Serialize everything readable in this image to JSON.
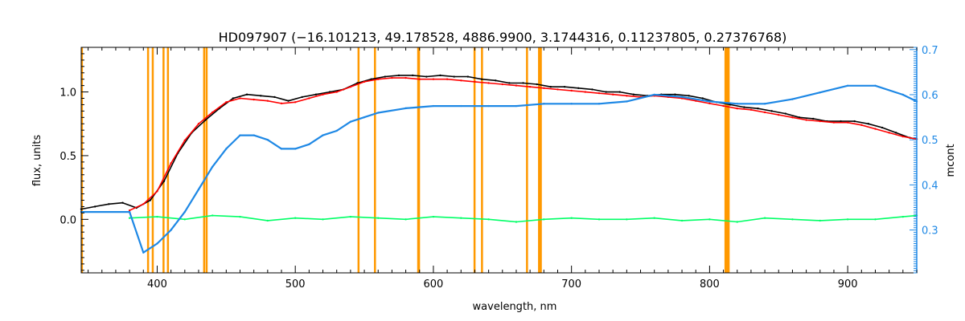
{
  "chart_data": {
    "type": "line",
    "title": "HD097907    (−16.101213, 49.178528, 4886.9900, 3.1744316, 0.11237805, 0.27376768)",
    "xlabel": "wavelength, nm",
    "ylabel": "flux, units",
    "y2label": "mcont",
    "xlim": [
      345,
      950
    ],
    "ylim": [
      -0.42,
      1.35
    ],
    "y2lim": [
      0.205,
      0.705
    ],
    "xticks": [
      400,
      500,
      600,
      700,
      800,
      900
    ],
    "yticks": [
      0.0,
      0.5,
      1.0
    ],
    "y2ticks": [
      0.3,
      0.4,
      0.5,
      0.6,
      0.7
    ],
    "xtick_labels": [
      "400",
      "500",
      "600",
      "700",
      "800",
      "900"
    ],
    "ytick_labels": [
      "0.0",
      "0.5",
      "1.0"
    ],
    "y2tick_labels": [
      "0.3",
      "0.4",
      "0.5",
      "0.6",
      "0.7"
    ],
    "grid": false,
    "colors": {
      "observed": "#000000",
      "model": "#ff0000",
      "residual": "#00ff66",
      "continuum": "#1e88e5",
      "lines": "#ff9900",
      "right_axis": "#1e88e5"
    },
    "series": [
      {
        "axis": "left",
        "color": "#000000",
        "x": [
          345,
          355,
          365,
          375,
          385,
          395,
          405,
          415,
          425,
          435,
          445,
          455,
          465,
          475,
          485,
          495,
          505,
          515,
          525,
          535,
          545,
          555,
          565,
          575,
          585,
          595,
          605,
          615,
          625,
          635,
          645,
          655,
          665,
          675,
          685,
          695,
          705,
          715,
          725,
          735,
          745,
          755,
          765,
          775,
          785,
          795,
          805,
          815,
          825,
          835,
          845,
          855,
          865,
          875,
          885,
          895,
          905,
          915,
          925,
          935,
          945,
          950
        ],
        "values": [
          0.08,
          0.1,
          0.12,
          0.13,
          0.09,
          0.15,
          0.3,
          0.52,
          0.68,
          0.78,
          0.87,
          0.95,
          0.98,
          0.97,
          0.96,
          0.93,
          0.96,
          0.98,
          1.0,
          1.02,
          1.07,
          1.1,
          1.12,
          1.13,
          1.13,
          1.12,
          1.13,
          1.12,
          1.12,
          1.1,
          1.09,
          1.07,
          1.07,
          1.06,
          1.04,
          1.04,
          1.03,
          1.02,
          1.0,
          1.0,
          0.98,
          0.97,
          0.98,
          0.98,
          0.97,
          0.95,
          0.92,
          0.9,
          0.88,
          0.87,
          0.85,
          0.83,
          0.8,
          0.79,
          0.77,
          0.77,
          0.77,
          0.75,
          0.72,
          0.68,
          0.64,
          0.63
        ]
      },
      {
        "axis": "left",
        "color": "#ff0000",
        "x": [
          380,
          390,
          400,
          410,
          420,
          430,
          440,
          450,
          460,
          470,
          480,
          490,
          500,
          510,
          520,
          530,
          540,
          550,
          560,
          570,
          580,
          590,
          600,
          610,
          620,
          630,
          640,
          650,
          660,
          670,
          680,
          690,
          700,
          710,
          720,
          730,
          740,
          750,
          760,
          770,
          780,
          790,
          800,
          810,
          820,
          830,
          840,
          850,
          860,
          870,
          880,
          890,
          900,
          910,
          920,
          930,
          940,
          950
        ],
        "values": [
          0.07,
          0.12,
          0.22,
          0.44,
          0.62,
          0.75,
          0.84,
          0.92,
          0.95,
          0.94,
          0.93,
          0.91,
          0.92,
          0.95,
          0.98,
          1.0,
          1.04,
          1.08,
          1.1,
          1.11,
          1.11,
          1.1,
          1.1,
          1.1,
          1.09,
          1.08,
          1.07,
          1.06,
          1.05,
          1.04,
          1.03,
          1.02,
          1.01,
          1.0,
          0.99,
          0.98,
          0.97,
          0.96,
          0.97,
          0.96,
          0.95,
          0.93,
          0.91,
          0.89,
          0.87,
          0.86,
          0.84,
          0.82,
          0.8,
          0.78,
          0.77,
          0.76,
          0.76,
          0.74,
          0.71,
          0.68,
          0.65,
          0.63
        ]
      },
      {
        "axis": "left",
        "color": "#00ff66",
        "x": [
          380,
          400,
          420,
          440,
          460,
          480,
          500,
          520,
          540,
          560,
          580,
          600,
          620,
          640,
          660,
          680,
          700,
          720,
          740,
          760,
          780,
          800,
          820,
          840,
          860,
          880,
          900,
          920,
          940,
          950
        ],
        "values": [
          0.01,
          0.02,
          0.0,
          0.03,
          0.02,
          -0.01,
          0.01,
          0.0,
          0.02,
          0.01,
          0.0,
          0.02,
          0.01,
          0.0,
          -0.02,
          0.0,
          0.01,
          0.0,
          0.0,
          0.01,
          -0.01,
          0.0,
          -0.02,
          0.01,
          0.0,
          -0.01,
          0.0,
          0.0,
          0.02,
          0.03
        ]
      },
      {
        "axis": "right",
        "color": "#1e88e5",
        "x": [
          345,
          380,
          390,
          400,
          410,
          420,
          430,
          440,
          450,
          460,
          470,
          480,
          490,
          500,
          510,
          520,
          530,
          540,
          550,
          560,
          580,
          600,
          620,
          640,
          660,
          680,
          700,
          720,
          740,
          760,
          780,
          800,
          820,
          840,
          860,
          880,
          900,
          920,
          940,
          950
        ],
        "values": [
          0.34,
          0.34,
          0.25,
          0.27,
          0.3,
          0.34,
          0.39,
          0.44,
          0.48,
          0.51,
          0.51,
          0.5,
          0.48,
          0.48,
          0.49,
          0.51,
          0.52,
          0.54,
          0.55,
          0.56,
          0.57,
          0.575,
          0.575,
          0.575,
          0.575,
          0.58,
          0.58,
          0.58,
          0.585,
          0.6,
          0.595,
          0.585,
          0.58,
          0.58,
          0.59,
          0.605,
          0.62,
          0.62,
          0.6,
          0.585
        ]
      }
    ],
    "vertical_lines": [
      345.5,
      393.4,
      396.8,
      404.6,
      407.8,
      434.0,
      435.8,
      545.8,
      557.7,
      589.0,
      589.6,
      629.8,
      635.2,
      667.8,
      676.5,
      677.8,
      811.5,
      812.6,
      813.8
    ]
  }
}
